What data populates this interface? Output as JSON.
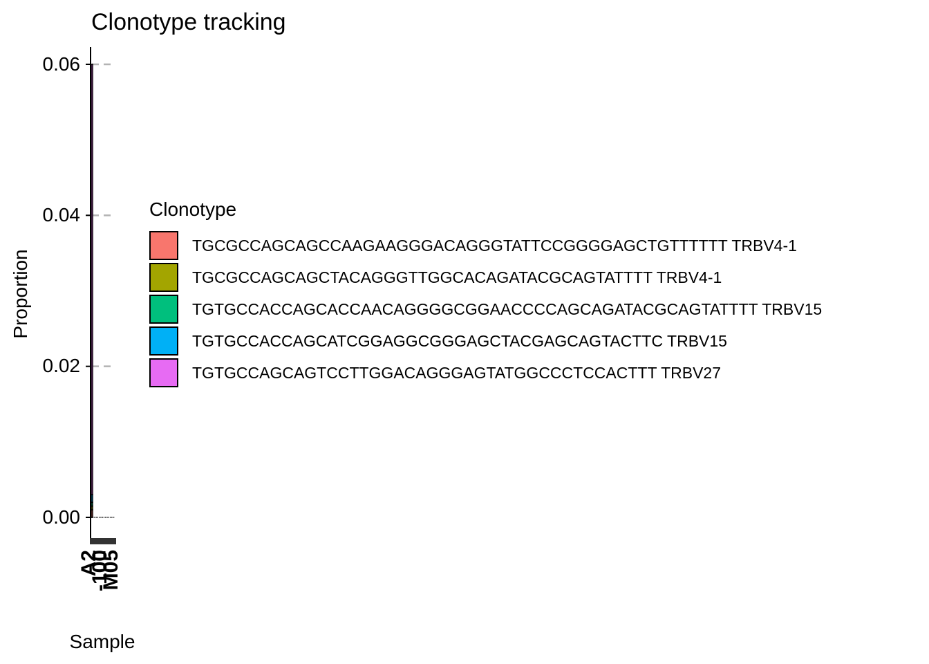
{
  "chart_data": {
    "type": "bar",
    "title": "Clonotype tracking",
    "xlabel": "Sample",
    "ylabel": "Proportion",
    "ylim": [
      0,
      0.062
    ],
    "yticks": [
      0.0,
      0.02,
      0.04,
      0.06
    ],
    "ytick_labels": [
      "0.00",
      "0.02",
      "0.04",
      "0.06"
    ],
    "grid": "dashed major y-grid at ticks",
    "stacked": true,
    "legend_title": "Clonotype",
    "legend_position": "right",
    "categories": [
      "A",
      "B",
      "C",
      "D",
      "E",
      "F",
      "G",
      "H",
      "I",
      "J",
      "K",
      "L",
      "M",
      "N",
      "O"
    ],
    "category_labels_legible": false,
    "overlapping_tick_text": [
      "A2",
      "-100",
      "M05"
    ],
    "series": [
      {
        "name": "TGCGCCAGCAGCCAAGAAGGGACAGGGTATTCCGGGGAGCTGTTTTTT TRBV4-1",
        "color": "#F8766D",
        "values": [
          0.001,
          0.0,
          0.0,
          0.0,
          0.0,
          0.0,
          0.0,
          0.0,
          0.0,
          0.0,
          0.0,
          0.0,
          0.0,
          0.0,
          0.0
        ]
      },
      {
        "name": "TGCGCCAGCAGCTACAGGGTTGGCACAGATACGCAGTATTTT TRBV4-1",
        "color": "#A3A500",
        "values": [
          0.0005,
          0.0,
          0.0,
          0.0,
          0.0,
          0.0,
          0.0,
          0.0,
          0.0,
          0.0,
          0.0,
          0.0,
          0.0,
          0.0,
          0.0
        ]
      },
      {
        "name": "TGTGCCACCAGCACCAACAGGGGCGGAACCCCAGCAGATACGCAGTATTTT TRBV15",
        "color": "#00BF7D",
        "values": [
          0.0005,
          0.0,
          0.0,
          0.0,
          0.0,
          0.0,
          0.0,
          0.0,
          0.0,
          0.0,
          0.0,
          0.0,
          0.0,
          0.0,
          0.0
        ]
      },
      {
        "name": "TGTGCCACCAGCATCGGAGGCGGGAGCTACGAGCAGTACTTC TRBV15",
        "color": "#00B0F6",
        "values": [
          0.001,
          0.0,
          0.0,
          0.0,
          0.0,
          0.0,
          0.0,
          0.0,
          0.0,
          0.0,
          0.0,
          0.0,
          0.0,
          0.0,
          0.0
        ]
      },
      {
        "name": "TGTGCCAGCAGTCCTTGGACAGGGAGTATGGCCCTCCACTTT TRBV27",
        "color": "#E76BF3",
        "values": [
          0.057,
          0.0,
          0.0,
          0.0,
          0.0,
          0.0,
          0.0,
          0.0,
          0.0,
          0.0,
          0.0,
          0.0,
          0.0,
          0.0,
          0.0
        ]
      }
    ]
  }
}
